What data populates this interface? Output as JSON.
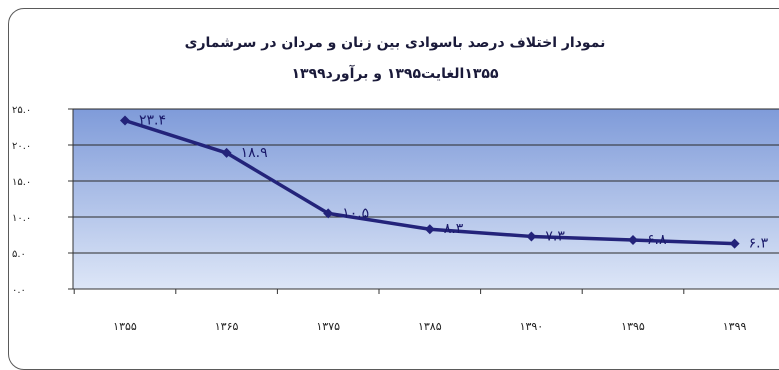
{
  "chart_data": {
    "type": "line",
    "title": "نمودار اختلاف درصد باسوادی بین زنان و مردان در سرشماری",
    "subtitle": "۱۳۵۵الغایت۱۳۹۵ و برآورد۱۳۹۹",
    "categories": [
      "۱۳۵۵",
      "۱۳۶۵",
      "۱۳۷۵",
      "۱۳۸۵",
      "۱۳۹۰",
      "۱۳۹۵",
      "۱۳۹۹"
    ],
    "values": [
      23.4,
      18.9,
      10.5,
      8.3,
      7.3,
      6.8,
      6.3
    ],
    "data_labels": [
      "۲۳.۴",
      "۱۸.۹",
      "۱۰.۵",
      "۸.۳",
      "۷.۳",
      "۶.۸",
      "۶.۳"
    ],
    "y_ticks": [
      0,
      5,
      10,
      15,
      20,
      25
    ],
    "y_tick_labels": [
      "۰.۰",
      "۵.۰",
      "۱۰.۰",
      "۱۵.۰",
      "۲۰.۰",
      "۲۵.۰"
    ],
    "ylim": [
      0,
      25
    ],
    "grid": true,
    "legend": "none",
    "colors": {
      "line": "#23237a",
      "plot_top": "#7f9bd9",
      "plot_bottom": "#dde6f7",
      "grid": "#2a2a2a"
    }
  }
}
